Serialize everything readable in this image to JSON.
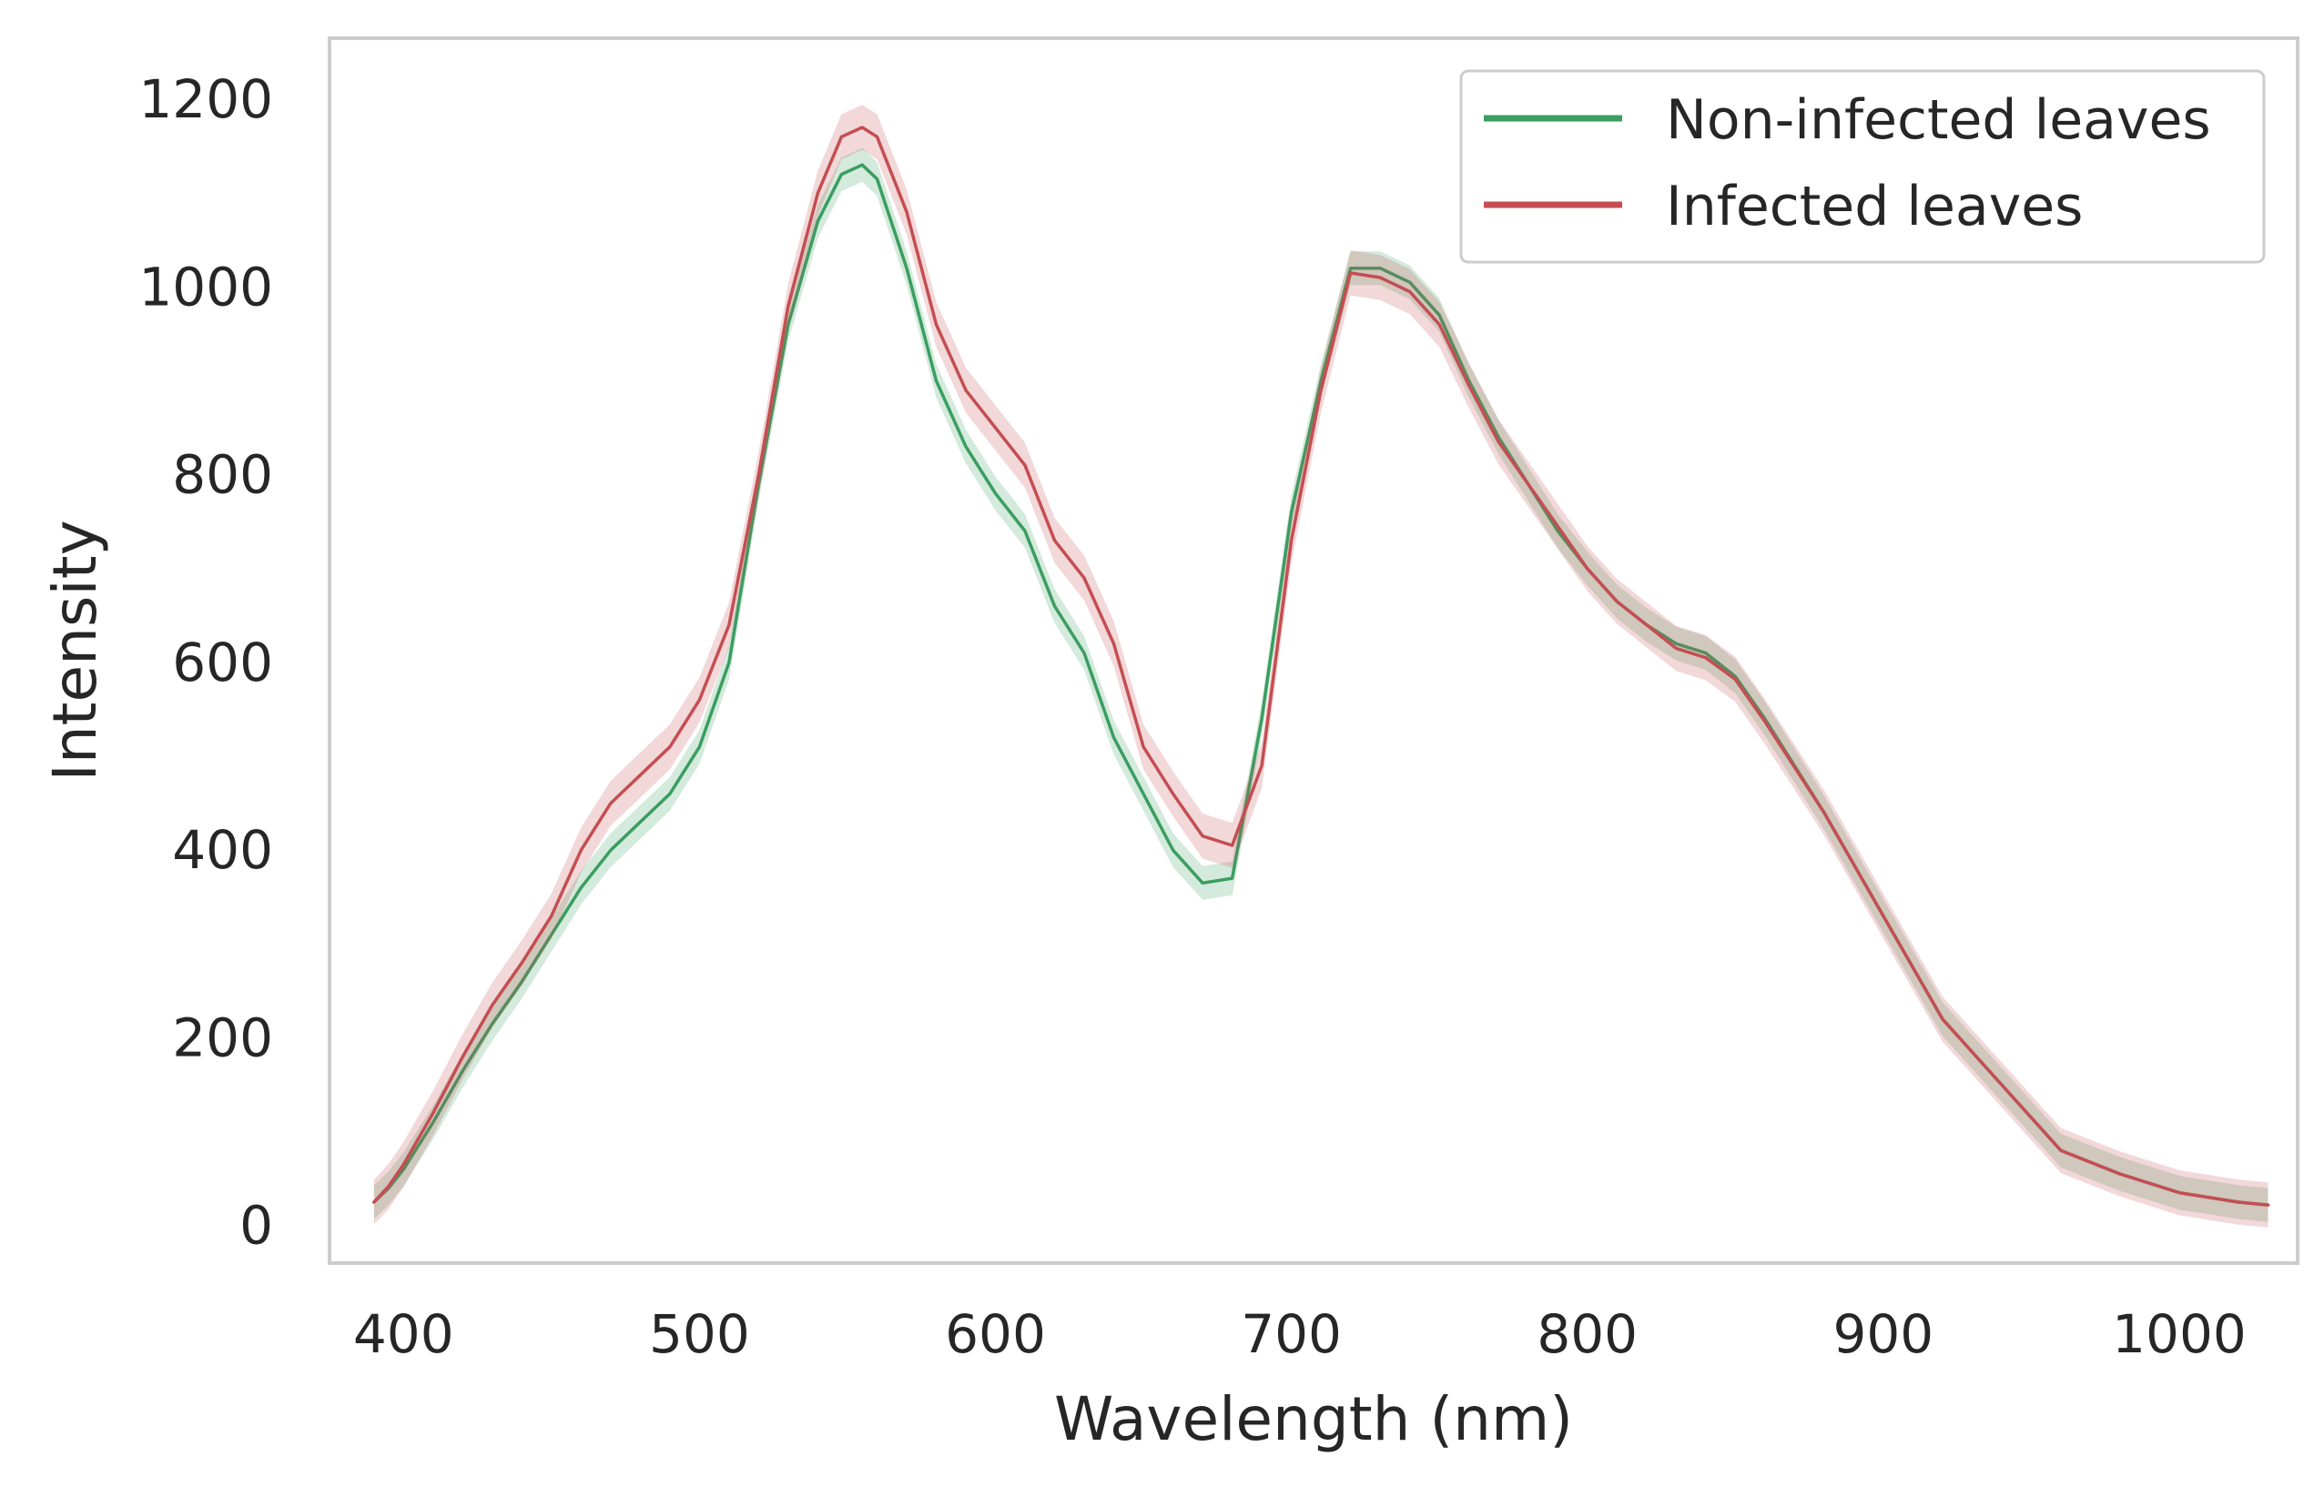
{
  "chart_data": {
    "type": "line",
    "title": "",
    "xlabel": "Wavelength (nm)",
    "ylabel": "Intensity",
    "xlim": [
      375,
      1040
    ],
    "ylim": [
      -40,
      1265
    ],
    "xticks": [
      400,
      500,
      600,
      700,
      800,
      900,
      1000
    ],
    "xtick_labels": [
      "400",
      "500",
      "600",
      "700",
      "800",
      "900",
      "1000"
    ],
    "yticks": [
      0,
      200,
      400,
      600,
      800,
      1000,
      1200
    ],
    "ytick_labels": [
      "0",
      "200",
      "400",
      "600",
      "800",
      "1000",
      "1200"
    ],
    "grid": false,
    "legend_position": "top-right",
    "series": [
      {
        "name": "Non-infected leaves",
        "color": "#3a9e60",
        "band": 18,
        "x": [
          390,
          395,
          400,
          410,
          420,
          430,
          440,
          450,
          460,
          470,
          480,
          490,
          500,
          510,
          520,
          530,
          540,
          548,
          555,
          560,
          570,
          580,
          590,
          600,
          610,
          620,
          630,
          640,
          650,
          660,
          670,
          680,
          690,
          700,
          710,
          720,
          730,
          740,
          750,
          760,
          770,
          780,
          790,
          800,
          810,
          820,
          830,
          840,
          850,
          860,
          880,
          900,
          920,
          940,
          960,
          980,
          1000,
          1020,
          1030
        ],
        "values": [
          25,
          40,
          60,
          110,
          165,
          215,
          260,
          310,
          360,
          400,
          430,
          460,
          510,
          600,
          790,
          960,
          1070,
          1120,
          1130,
          1115,
          1020,
          900,
          830,
          780,
          740,
          660,
          610,
          520,
          460,
          400,
          365,
          370,
          540,
          760,
          900,
          1020,
          1020,
          1005,
          970,
          900,
          840,
          790,
          740,
          700,
          665,
          640,
          620,
          610,
          585,
          540,
          440,
          330,
          220,
          150,
          80,
          55,
          35,
          25,
          22
        ]
      },
      {
        "name": "Infected leaves",
        "color": "#c44e52",
        "band": 24,
        "x": [
          390,
          395,
          400,
          410,
          420,
          430,
          440,
          450,
          460,
          470,
          480,
          490,
          500,
          510,
          520,
          530,
          540,
          548,
          555,
          560,
          570,
          580,
          590,
          600,
          610,
          620,
          630,
          640,
          650,
          660,
          670,
          680,
          690,
          700,
          710,
          720,
          730,
          740,
          750,
          760,
          770,
          780,
          790,
          800,
          810,
          820,
          830,
          840,
          850,
          860,
          880,
          900,
          920,
          940,
          960,
          980,
          1000,
          1020,
          1030
        ],
        "values": [
          25,
          42,
          65,
          120,
          180,
          235,
          280,
          330,
          400,
          450,
          480,
          510,
          560,
          640,
          800,
          980,
          1100,
          1160,
          1170,
          1160,
          1080,
          960,
          890,
          850,
          810,
          730,
          690,
          620,
          510,
          460,
          415,
          405,
          490,
          730,
          890,
          1015,
          1010,
          995,
          960,
          895,
          835,
          790,
          745,
          700,
          665,
          640,
          615,
          605,
          582,
          537,
          440,
          330,
          220,
          150,
          80,
          55,
          35,
          25,
          22
        ]
      }
    ]
  }
}
